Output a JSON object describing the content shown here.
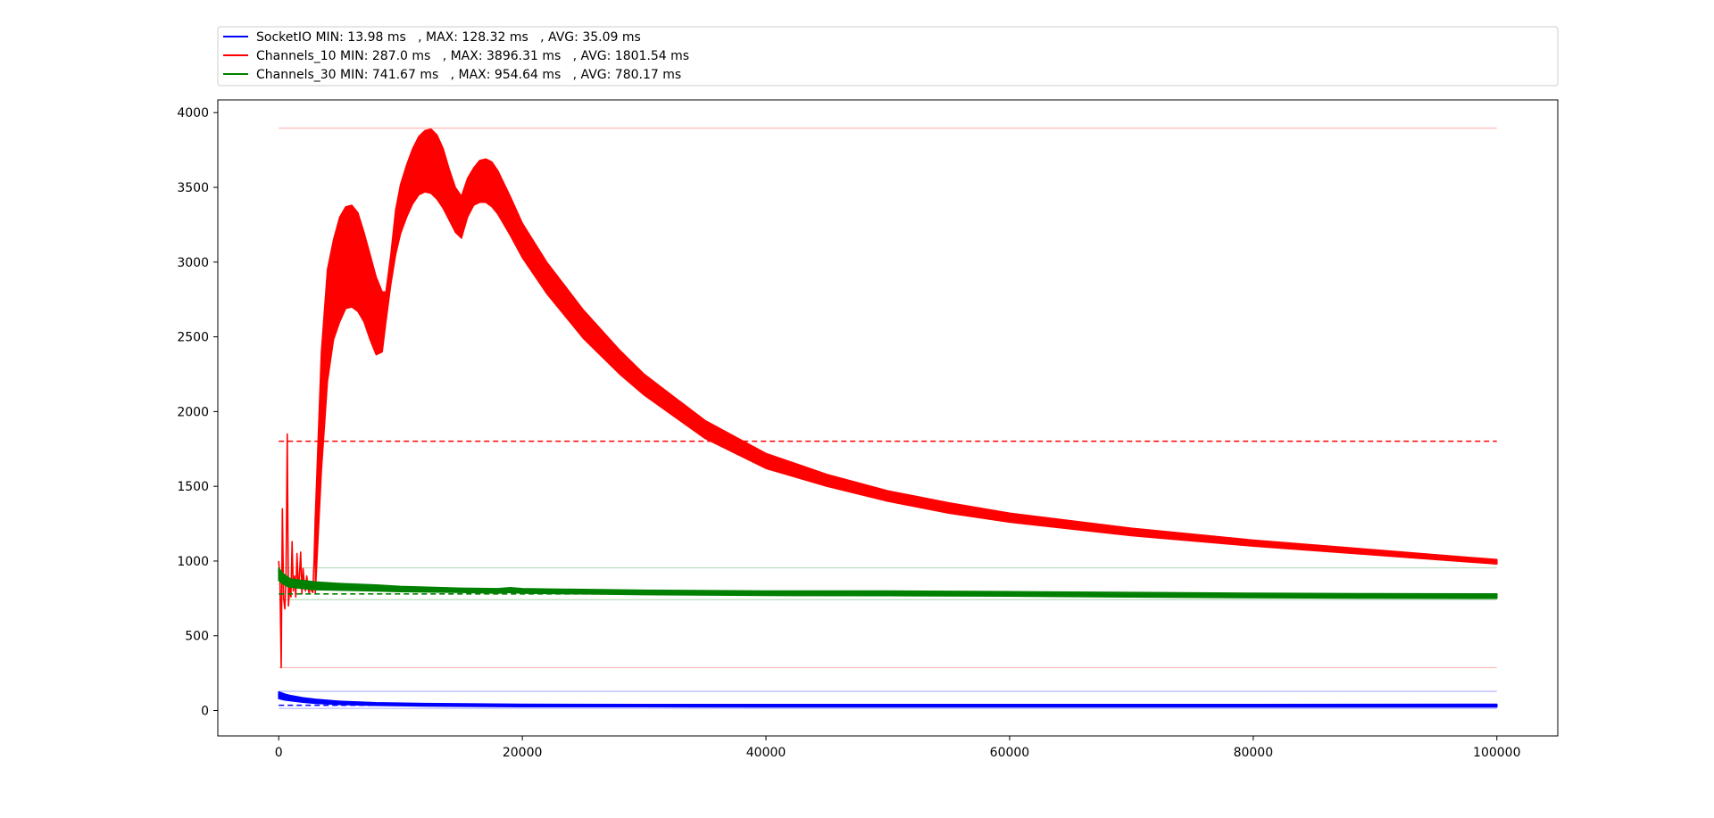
{
  "chart_data": {
    "type": "line",
    "xlim": [
      -5000,
      105000
    ],
    "ylim": [
      -170,
      4085
    ],
    "x_ticks": [
      0,
      20000,
      40000,
      60000,
      80000,
      100000
    ],
    "y_ticks": [
      0,
      500,
      1000,
      1500,
      2000,
      2500,
      3000,
      3500,
      4000
    ],
    "grid": false,
    "legend_position": "top",
    "series": [
      {
        "name": "SocketIO",
        "legend_label": "SocketIO MIN: 13.98 ms   , MAX: 128.32 ms   , AVG: 35.09 ms",
        "color": "#0000ff",
        "min": 13.98,
        "max": 128.32,
        "avg": 35.09,
        "band": {
          "x": [
            0,
            500,
            1000,
            2000,
            3000,
            5000,
            8000,
            12000,
            20000,
            30000,
            40000,
            60000,
            80000,
            100000
          ],
          "upper": [
            125,
            110,
            100,
            85,
            75,
            62,
            52,
            47,
            42,
            40,
            40,
            40,
            40,
            42
          ],
          "lower": [
            80,
            70,
            65,
            55,
            48,
            40,
            34,
            30,
            26,
            25,
            24,
            24,
            24,
            24
          ]
        }
      },
      {
        "name": "Channels_10",
        "legend_label": "Channels_10 MIN: 287.0 ms   , MAX: 3896.31 ms   , AVG: 1801.54 ms",
        "color": "#ff0000",
        "min": 287.0,
        "max": 3896.31,
        "avg": 1801.54,
        "early": {
          "x": [
            0,
            100,
            200,
            300,
            400,
            500,
            600,
            700,
            800,
            900,
            1000,
            1100,
            1200,
            1300,
            1400,
            1500,
            1600,
            1700,
            1800,
            1900,
            2000,
            2100,
            2200,
            2300,
            2400,
            2500,
            2600,
            2700,
            2800,
            2900,
            3000
          ],
          "y": [
            1000,
            880,
            287,
            1350,
            750,
            680,
            900,
            1850,
            700,
            820,
            760,
            1130,
            800,
            900,
            760,
            1050,
            820,
            900,
            1060,
            780,
            950,
            850,
            800,
            900,
            830,
            780,
            850,
            800,
            790,
            1000,
            1300
          ]
        },
        "band": {
          "x": [
            3000,
            3500,
            4000,
            4500,
            5000,
            5500,
            6000,
            6500,
            7000,
            7500,
            8000,
            8500,
            8800,
            9200,
            9600,
            10000,
            10500,
            11000,
            11500,
            12000,
            12500,
            13000,
            13500,
            14000,
            14500,
            15000,
            15500,
            16000,
            16500,
            17000,
            17500,
            18000,
            19000,
            20000,
            22000,
            25000,
            28000,
            30000,
            35000,
            40000,
            45000,
            50000,
            55000,
            60000,
            70000,
            80000,
            90000,
            100000
          ],
          "upper": [
            1300,
            2400,
            2950,
            3150,
            3300,
            3370,
            3380,
            3330,
            3200,
            3050,
            2900,
            2800,
            2800,
            3050,
            3350,
            3520,
            3650,
            3760,
            3840,
            3880,
            3890,
            3850,
            3760,
            3620,
            3500,
            3440,
            3560,
            3630,
            3680,
            3690,
            3670,
            3610,
            3440,
            3260,
            3000,
            2680,
            2410,
            2250,
            1940,
            1720,
            1580,
            1470,
            1390,
            1320,
            1220,
            1140,
            1075,
            1010
          ],
          "lower": [
            780,
            1600,
            2200,
            2480,
            2600,
            2690,
            2700,
            2670,
            2600,
            2480,
            2380,
            2400,
            2600,
            2850,
            3050,
            3190,
            3300,
            3390,
            3450,
            3470,
            3460,
            3420,
            3360,
            3280,
            3200,
            3160,
            3300,
            3380,
            3400,
            3400,
            3370,
            3320,
            3180,
            3030,
            2790,
            2490,
            2250,
            2110,
            1820,
            1620,
            1500,
            1400,
            1320,
            1260,
            1170,
            1100,
            1040,
            980
          ]
        }
      },
      {
        "name": "Channels_30",
        "legend_label": "Channels_30 MIN: 741.67 ms   , MAX: 954.64 ms   , AVG: 780.17 ms",
        "color": "#008000",
        "min": 741.67,
        "max": 954.64,
        "avg": 780.17,
        "band": {
          "x": [
            0,
            300,
            700,
            1000,
            2000,
            3000,
            5000,
            8000,
            10000,
            15000,
            18000,
            19000,
            20000,
            25000,
            30000,
            40000,
            50000,
            60000,
            70000,
            80000,
            90000,
            100000
          ],
          "upper": [
            955,
            920,
            895,
            880,
            870,
            860,
            850,
            840,
            830,
            818,
            815,
            822,
            815,
            810,
            805,
            800,
            800,
            795,
            790,
            785,
            782,
            780
          ],
          "lower": [
            870,
            850,
            830,
            825,
            815,
            808,
            805,
            800,
            795,
            790,
            785,
            790,
            785,
            780,
            775,
            770,
            768,
            765,
            760,
            755,
            752,
            750
          ]
        }
      }
    ]
  }
}
